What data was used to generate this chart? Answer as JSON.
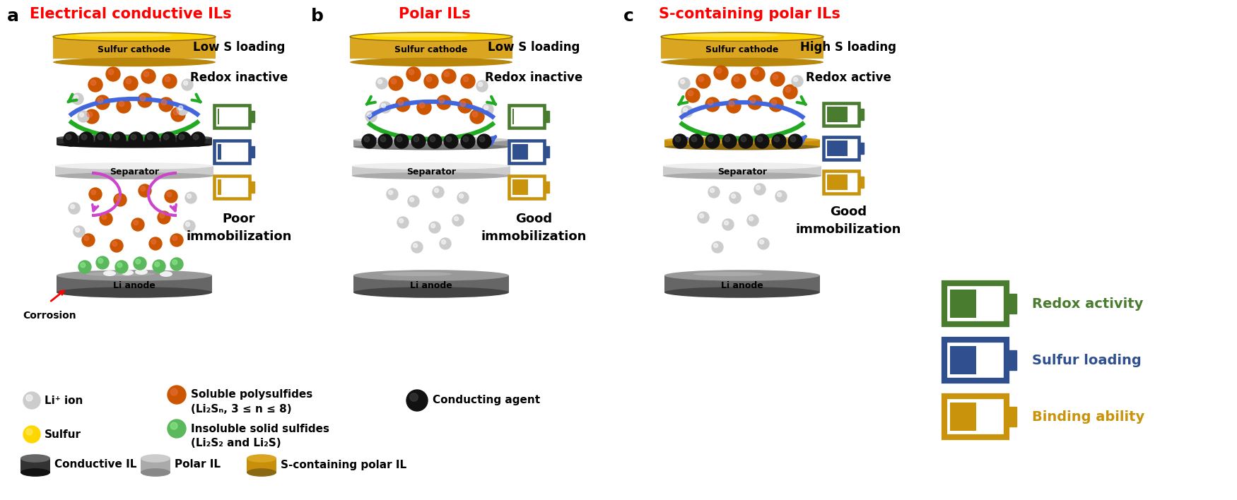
{
  "panel_a_title": "Electrical conductive ILs",
  "panel_b_title": "Polar ILs",
  "panel_c_title": "S-containing polar ILs",
  "red_color": "#FF0000",
  "battery_green": "#4a7c2f",
  "battery_blue": "#2f4f8f",
  "battery_gold": "#C9940C",
  "arrow_green": "#22aa22",
  "arrow_blue": "#4466dd",
  "arrow_purple": "#cc44cc",
  "orange_sphere": "#CC5500",
  "gray_sphere": "#cccccc",
  "green_sphere": "#5cb85c",
  "black_sphere": "#111111",
  "cathode_gold": "#DAA520",
  "cathode_bright": "#FFD700",
  "cathode_dark": "#B8860B",
  "separator_light": "#dddddd",
  "anode_mid": "#777777",
  "anode_dark": "#444444",
  "anode_light": "#999999"
}
